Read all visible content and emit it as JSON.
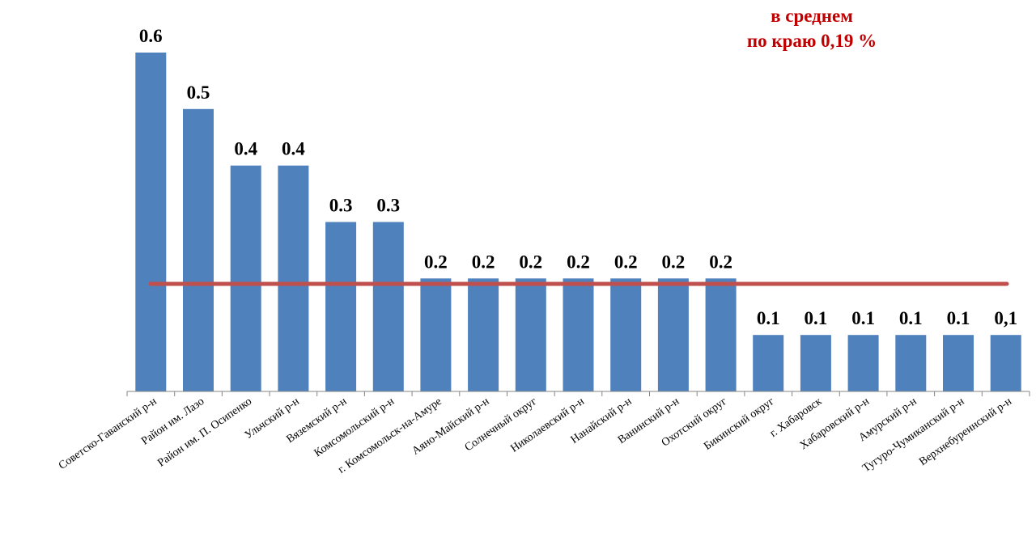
{
  "annotation": {
    "line1": "в среднем",
    "line2": "по краю 0,19 %"
  },
  "chart_data": {
    "type": "bar",
    "categories": [
      "Советско-Гаванский  р-н",
      "Район им. Лазо",
      "Район им. П. Осипенко",
      "Ульчский  р-н",
      "Вяземский  р-н",
      "Комсомольский  р-н",
      "г. Комсомольск-на-Амуре",
      "Аяно-Майский  р-н",
      "Солнечный округ",
      "Николаевский  р-н",
      "Нанайский  р-н",
      "Ванинский  р-н",
      "Охотский  округ",
      "Бикинский округ",
      "г. Хабаровск",
      "Хабаровский  р-н",
      "Амурский р-н",
      "Тугуро-Чумиканский  р-н",
      "Верхнебуреинский  р-н"
    ],
    "values": [
      0.6,
      0.5,
      0.4,
      0.4,
      0.3,
      0.3,
      0.2,
      0.2,
      0.2,
      0.2,
      0.2,
      0.2,
      0.2,
      0.1,
      0.1,
      0.1,
      0.1,
      0.1,
      0.1
    ],
    "data_labels": [
      "0.6",
      "0.5",
      "0.4",
      "0.4",
      "0.3",
      "0.3",
      "0.2",
      "0.2",
      "0.2",
      "0.2",
      "0.2",
      "0.2",
      "0.2",
      "0.1",
      "0.1",
      "0.1",
      "0.1",
      "0.1",
      "0,1"
    ],
    "average": 0.19,
    "ylim": [
      0,
      0.6
    ],
    "grid": false,
    "legend": "none",
    "bar_color": "#4f81bd",
    "average_line_color": "#c0504d",
    "annotation_color": "#c00000"
  }
}
